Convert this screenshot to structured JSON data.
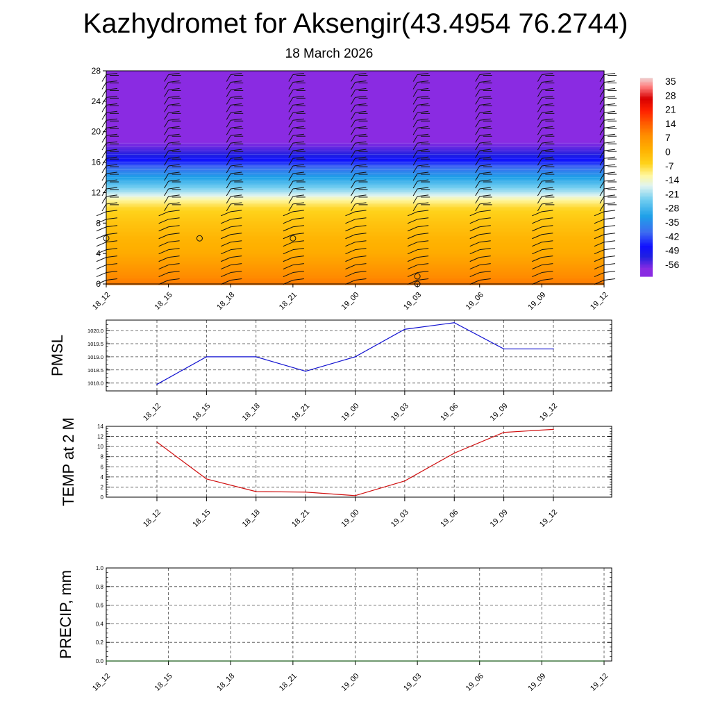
{
  "header": {
    "title": "Kazhydromet for Aksengir(43.4954 76.2744)",
    "date": "18 March 2026"
  },
  "colors": {
    "pmsl_line": "#1010d0",
    "temp_line": "#d01010",
    "precip_line": "#1a5c1a",
    "grid": "#444444",
    "axis": "#000000"
  },
  "chart_data": [
    {
      "id": "cross_section",
      "type": "heatmap",
      "title": "",
      "x_tick_labels": [
        "18_12",
        "18_15",
        "18_18",
        "18_21",
        "19_00",
        "19_03",
        "19_06",
        "19_09",
        "19_12"
      ],
      "y_ticks": [
        0,
        4,
        8,
        12,
        16,
        20,
        24,
        28
      ],
      "ylim": [
        0,
        28
      ],
      "color_scale": {
        "labels": [
          "35",
          "28",
          "21",
          "14",
          "7",
          "0",
          "-7",
          "-14",
          "-21",
          "-28",
          "-35",
          "-42",
          "-49",
          "-56"
        ],
        "min": -60,
        "max": 38,
        "stops": [
          {
            "v": -60,
            "c": "#8a2be2"
          },
          {
            "v": -56,
            "c": "#8a2be2"
          },
          {
            "v": -50,
            "c": "#2020e0"
          },
          {
            "v": -45,
            "c": "#1010ff"
          },
          {
            "v": -38,
            "c": "#3d6cf0"
          },
          {
            "v": -30,
            "c": "#1ea0e8"
          },
          {
            "v": -22,
            "c": "#70cdf0"
          },
          {
            "v": -15,
            "c": "#e0f4f0"
          },
          {
            "v": -10,
            "c": "#fff7a0"
          },
          {
            "v": -4,
            "c": "#ffd21a"
          },
          {
            "v": 3,
            "c": "#ffb000"
          },
          {
            "v": 10,
            "c": "#ff8c00"
          },
          {
            "v": 16,
            "c": "#ff5a00"
          },
          {
            "v": 22,
            "c": "#ff2000"
          },
          {
            "v": 28,
            "c": "#d80000"
          },
          {
            "v": 34,
            "c": "#ff8080"
          },
          {
            "v": 38,
            "c": "#f0d0d0"
          }
        ]
      },
      "vertical_profile": [
        {
          "level": 0,
          "value": 12
        },
        {
          "level": 2,
          "value": 8
        },
        {
          "level": 4,
          "value": 4
        },
        {
          "level": 6,
          "value": 2
        },
        {
          "level": 8,
          "value": -1
        },
        {
          "level": 10,
          "value": -5
        },
        {
          "level": 11,
          "value": -10
        },
        {
          "level": 12,
          "value": -18
        },
        {
          "level": 13,
          "value": -24
        },
        {
          "level": 14,
          "value": -30
        },
        {
          "level": 15,
          "value": -36
        },
        {
          "level": 16,
          "value": -43
        },
        {
          "level": 17,
          "value": -50
        },
        {
          "level": 18,
          "value": -54
        },
        {
          "level": 19,
          "value": -57
        },
        {
          "level": 20,
          "value": -59
        },
        {
          "level": 28,
          "value": -60
        }
      ],
      "circle_markers": [
        {
          "x": 0,
          "level": 6
        },
        {
          "x": 1.5,
          "level": 6
        },
        {
          "x": 3,
          "level": 6
        },
        {
          "x": 5,
          "level": 1
        },
        {
          "x": 5,
          "level": 0
        }
      ]
    },
    {
      "id": "pmsl",
      "type": "line",
      "ylabel": "PMSL",
      "categories": [
        "18_12",
        "18_15",
        "18_18",
        "18_21",
        "19_00",
        "19_03",
        "19_06",
        "19_09",
        "19_12"
      ],
      "y_ticks": [
        "1018.0",
        "1018.5",
        "1019.0",
        "1019.5",
        "1020.0"
      ],
      "ylim": [
        1017.7,
        1020.4
      ],
      "series": [
        {
          "name": "PMSL",
          "values": [
            1017.95,
            1019.0,
            1019.0,
            1018.45,
            1019.0,
            1020.05,
            1020.3,
            1019.3,
            1019.3
          ]
        }
      ]
    },
    {
      "id": "temp2m",
      "type": "line",
      "ylabel": "TEMP at 2 M",
      "categories": [
        "18_12",
        "18_15",
        "18_18",
        "18_21",
        "19_00",
        "19_03",
        "19_06",
        "19_09",
        "19_12"
      ],
      "y_ticks": [
        "0",
        "2",
        "4",
        "6",
        "8",
        "10",
        "12",
        "14"
      ],
      "ylim": [
        0,
        14
      ],
      "series": [
        {
          "name": "T2M",
          "values": [
            10.9,
            3.6,
            1.1,
            1.0,
            0.3,
            3.2,
            8.7,
            12.8,
            13.4
          ]
        }
      ]
    },
    {
      "id": "precip",
      "type": "line",
      "ylabel": "PRECIP, mm",
      "categories": [
        "18_12",
        "18_15",
        "18_18",
        "18_21",
        "19_00",
        "19_03",
        "19_06",
        "19_09",
        "19_12"
      ],
      "y_ticks": [
        "0.0",
        "0.2",
        "0.4",
        "0.6",
        "0.8",
        "1.0"
      ],
      "ylim": [
        0,
        1
      ],
      "series": [
        {
          "name": "PRECIP",
          "values": [
            0,
            0,
            0,
            0,
            0,
            0,
            0,
            0,
            0
          ]
        }
      ]
    }
  ]
}
